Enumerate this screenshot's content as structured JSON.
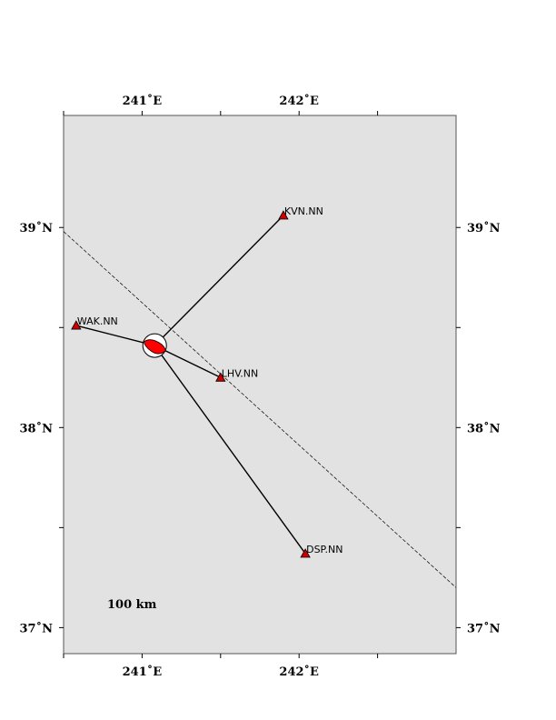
{
  "map": {
    "lon_range": [
      240.5,
      243.0
    ],
    "lat_range": [
      36.87,
      39.56
    ],
    "lon_ticks": [
      {
        "value": 241,
        "label": "241˚E"
      },
      {
        "value": 242,
        "label": "242˚E"
      }
    ],
    "lat_ticks": [
      {
        "value": 39,
        "label": "39˚N"
      },
      {
        "value": 38,
        "label": "38˚N"
      },
      {
        "value": 37,
        "label": "37˚N"
      }
    ],
    "minor_lon_ticks": [
      240.5,
      241.5,
      242.5
    ],
    "minor_lat_ticks": [
      38.5,
      37.5
    ],
    "background_color": "#e2e2e2",
    "event": {
      "lon": 241.08,
      "lat": 38.41,
      "fill_color": "#ff0000"
    },
    "stations": [
      {
        "name": "KVN.NN",
        "lon": 241.9,
        "lat": 39.06
      },
      {
        "name": "WAK.NN",
        "lon": 240.58,
        "lat": 38.51
      },
      {
        "name": "LHV.NN",
        "lon": 241.5,
        "lat": 38.25
      },
      {
        "name": "DSP.NN",
        "lon": 242.04,
        "lat": 37.37
      }
    ],
    "station_color": "#cc0000",
    "fault_line": [
      {
        "lon": 240.5,
        "lat": 38.98
      },
      {
        "lon": 243.0,
        "lat": 37.2
      }
    ],
    "scale_bar": {
      "label": "100 km"
    }
  }
}
